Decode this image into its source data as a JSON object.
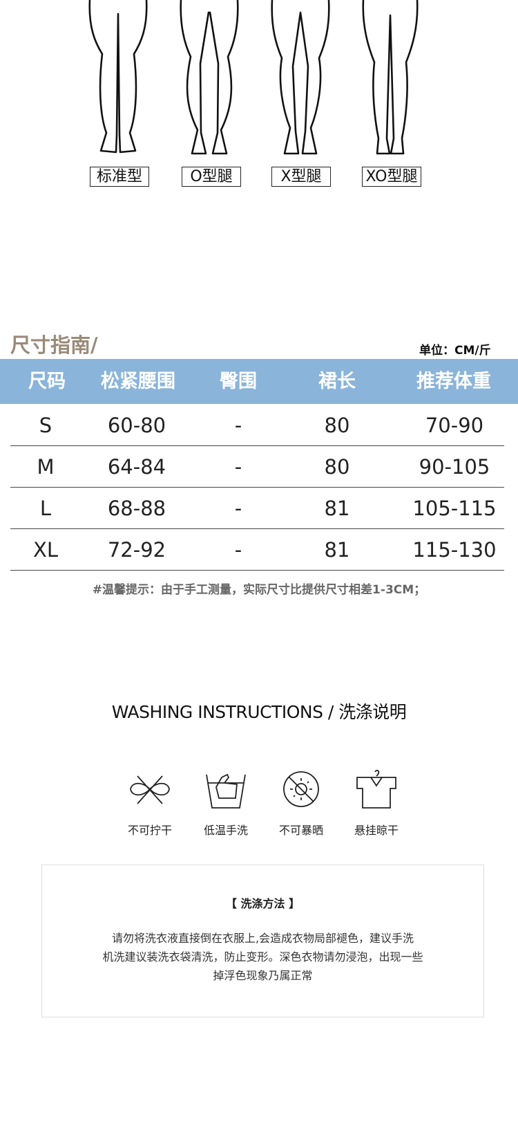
{
  "leg_types": [
    "标准型",
    "O型腿",
    "X型腿",
    "XO型腿"
  ],
  "size_guide": {
    "title": "尺寸指南/",
    "unit": "单位：CM/斤",
    "header_color": "#8ab4d9",
    "columns": [
      "尺码",
      "松紧腰围",
      "臀围",
      "裙长",
      "推荐体重"
    ],
    "rows": [
      [
        "S",
        "60-80",
        "-",
        "80",
        "70-90"
      ],
      [
        "M",
        "64-84",
        "-",
        "80",
        "90-105"
      ],
      [
        "L",
        "68-88",
        "-",
        "81",
        "105-115"
      ],
      [
        "XL",
        "72-92",
        "-",
        "81",
        "115-130"
      ]
    ],
    "note": "#温馨提示：由于手工测量，实际尺寸比提供尺寸相差1-3CM；"
  },
  "washing": {
    "title": "WASHING INSTRUCTIONS / 洗涤说明",
    "icons": [
      {
        "icon": "no-wring-icon",
        "label": "不可拧干"
      },
      {
        "icon": "hand-wash-icon",
        "label": "低温手洗"
      },
      {
        "icon": "no-sun-icon",
        "label": "不可暴晒"
      },
      {
        "icon": "hang-dry-icon",
        "label": "悬挂晾干"
      }
    ],
    "method_title": "【 洗涤方法 】",
    "method_lines": [
      "请勿将洗衣液直接倒在衣服上,会造成衣物局部褪色，建议手洗",
      "机洗建议装洗衣袋清洗，防止变形。深色衣物请勿浸泡，出现一些",
      "掉浮色现象乃属正常"
    ]
  }
}
